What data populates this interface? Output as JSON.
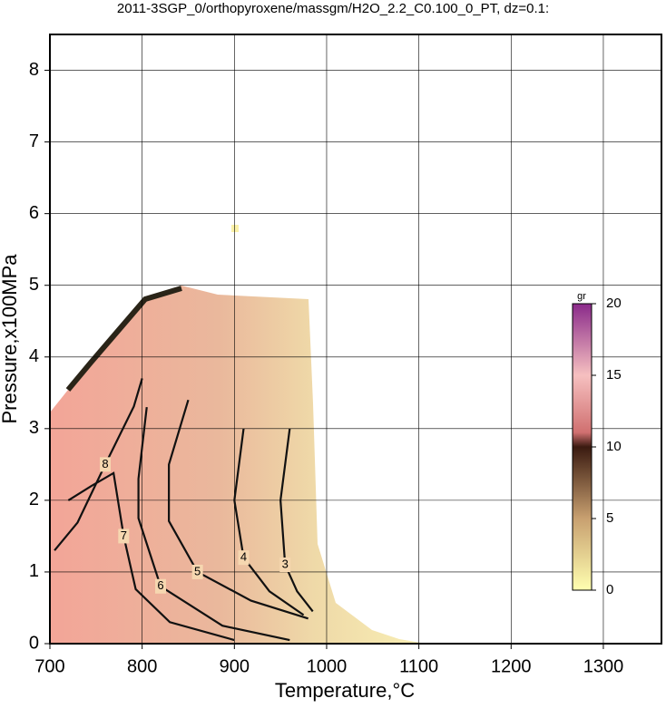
{
  "chart_data": {
    "type": "contour",
    "title": "2011-3SGP_0/orthopyroxene/massgm/H2O_2.2_C0.100_0_PT, dz=0.1:",
    "x_label": "Temperature,°C",
    "y_label": "Pressure,x100MPa",
    "xlim": [
      700,
      1363
    ],
    "ylim": [
      0,
      8.5
    ],
    "xticks": [
      700,
      800,
      900,
      1000,
      1100,
      1200,
      1300
    ],
    "yticks": [
      0,
      1,
      2,
      3,
      4,
      5,
      6,
      7,
      8
    ],
    "grid": true,
    "contours": [
      {
        "level": 8,
        "x": [
          705,
          730,
          760,
          791,
          800
        ],
        "y": [
          1.3,
          1.69,
          2.5,
          3.31,
          3.7
        ]
      },
      {
        "level": 7,
        "x": [
          720,
          745,
          769,
          780,
          793,
          830,
          900
        ],
        "y": [
          2.0,
          2.2,
          2.38,
          1.5,
          0.76,
          0.3,
          0.05
        ]
      },
      {
        "level": 6,
        "x": [
          805,
          796,
          796,
          820,
          887,
          960
        ],
        "y": [
          3.3,
          2.3,
          1.75,
          0.8,
          0.25,
          0.05
        ]
      },
      {
        "level": 5,
        "x": [
          850,
          829,
          829,
          860,
          918,
          980
        ],
        "y": [
          3.4,
          2.5,
          1.71,
          1.0,
          0.6,
          0.35
        ]
      },
      {
        "level": 4,
        "x": [
          910,
          900,
          910,
          938,
          975
        ],
        "y": [
          3.0,
          2.0,
          1.2,
          0.73,
          0.4
        ]
      },
      {
        "level": 3,
        "x": [
          960,
          950,
          955,
          968,
          985
        ],
        "y": [
          3.0,
          2.0,
          1.1,
          0.73,
          0.45
        ]
      }
    ],
    "colorbar": {
      "label": "gr",
      "lim": [
        0,
        20
      ],
      "ticks": [
        0,
        5,
        10,
        15,
        20
      ]
    }
  }
}
